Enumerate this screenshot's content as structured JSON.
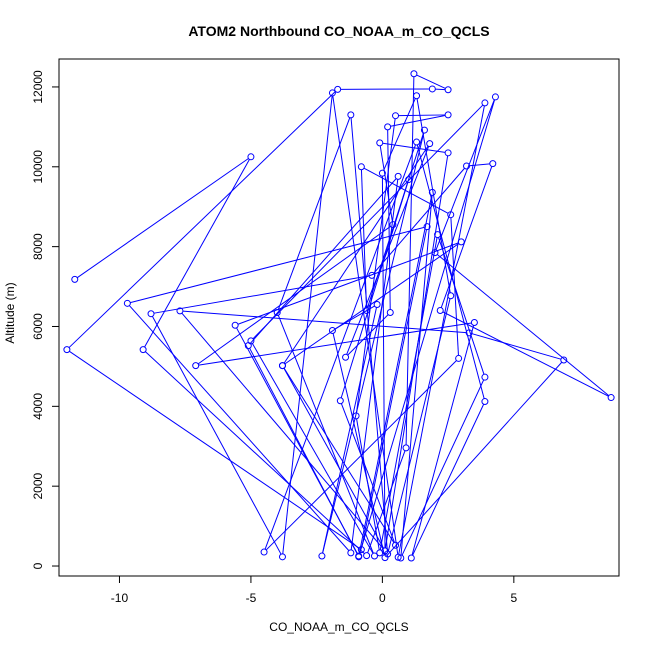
{
  "chart_data": {
    "type": "line",
    "title": "ATOM2 Northbound CO_NOAA_m_CO_QCLS",
    "xlabel": "CO_NOAA_m_CO_QCLS",
    "ylabel": "Altitude (m)",
    "xlim": [
      -12.3,
      9.0
    ],
    "ylim": [
      -250,
      12700
    ],
    "x_ticks": [
      -10,
      -5,
      0,
      5
    ],
    "y_ticks": [
      0,
      2000,
      4000,
      6000,
      8000,
      10000,
      12000
    ],
    "grid": false,
    "line_color": "#0000ff",
    "marker": "open-circle",
    "series": [
      {
        "points": [
          {
            "x": -11.7,
            "y": 7180
          },
          {
            "x": -5.0,
            "y": 10250
          },
          {
            "x": -9.1,
            "y": 5420
          },
          {
            "x": -0.6,
            "y": 260
          },
          {
            "x": 0.9,
            "y": 2960
          },
          {
            "x": 1.2,
            "y": 12330
          },
          {
            "x": 2.5,
            "y": 11930
          },
          {
            "x": 1.9,
            "y": 11950
          },
          {
            "x": -1.7,
            "y": 11940
          },
          {
            "x": -12.0,
            "y": 5420
          },
          {
            "x": -0.8,
            "y": 410
          },
          {
            "x": 1.7,
            "y": 8500
          },
          {
            "x": -9.7,
            "y": 6580
          },
          {
            "x": -1.2,
            "y": 330
          },
          {
            "x": 0.6,
            "y": 9760
          },
          {
            "x": -5.1,
            "y": 5520
          },
          {
            "x": -0.9,
            "y": 230
          },
          {
            "x": 4.3,
            "y": 11750
          },
          {
            "x": 2.0,
            "y": 7850
          },
          {
            "x": 8.7,
            "y": 4220
          },
          {
            "x": 2.2,
            "y": 6400
          },
          {
            "x": 4.2,
            "y": 10080
          },
          {
            "x": 3.2,
            "y": 10020
          },
          {
            "x": -0.4,
            "y": 7280
          },
          {
            "x": -8.8,
            "y": 6320
          },
          {
            "x": -3.8,
            "y": 230
          },
          {
            "x": -1.9,
            "y": 11850
          },
          {
            "x": 0.6,
            "y": 220
          },
          {
            "x": 3.9,
            "y": 11600
          },
          {
            "x": -5.0,
            "y": 5640
          },
          {
            "x": -0.3,
            "y": 250
          },
          {
            "x": -4.0,
            "y": 6350
          },
          {
            "x": -1.2,
            "y": 11300
          },
          {
            "x": 0.2,
            "y": 300
          },
          {
            "x": 2.6,
            "y": 6770
          },
          {
            "x": 1.3,
            "y": 11780
          },
          {
            "x": 0.0,
            "y": 9840
          },
          {
            "x": 0.1,
            "y": 380
          },
          {
            "x": -7.7,
            "y": 6390
          },
          {
            "x": 3.3,
            "y": 5840
          },
          {
            "x": 6.9,
            "y": 5160
          },
          {
            "x": 0.1,
            "y": 210
          },
          {
            "x": -1.9,
            "y": 5900
          },
          {
            "x": -0.2,
            "y": 6550
          },
          {
            "x": -2.3,
            "y": 250
          },
          {
            "x": 1.6,
            "y": 10920
          },
          {
            "x": -0.6,
            "y": 6400
          },
          {
            "x": -0.8,
            "y": 10000
          },
          {
            "x": 2.6,
            "y": 8800
          },
          {
            "x": 2.9,
            "y": 5200
          },
          {
            "x": -4.5,
            "y": 350
          },
          {
            "x": 1.3,
            "y": 10620
          },
          {
            "x": 3.9,
            "y": 4120
          },
          {
            "x": 1.1,
            "y": 200
          },
          {
            "x": 3.5,
            "y": 6100
          },
          {
            "x": -7.1,
            "y": 5020
          },
          {
            "x": 0.4,
            "y": 8550
          },
          {
            "x": -0.1,
            "y": 10600
          },
          {
            "x": 2.5,
            "y": 10350
          },
          {
            "x": 0.1,
            "y": 380
          },
          {
            "x": -3.8,
            "y": 5020
          },
          {
            "x": 1.8,
            "y": 10580
          },
          {
            "x": -1.4,
            "y": 5230
          },
          {
            "x": 0.3,
            "y": 6350
          },
          {
            "x": 0.2,
            "y": 11000
          },
          {
            "x": 2.5,
            "y": 11300
          },
          {
            "x": 0.5,
            "y": 11280
          },
          {
            "x": -1.0,
            "y": 3760
          },
          {
            "x": -0.1,
            "y": 330
          },
          {
            "x": 2.1,
            "y": 8300
          },
          {
            "x": 3.9,
            "y": 4730
          },
          {
            "x": 0.7,
            "y": 200
          },
          {
            "x": 1.9,
            "y": 9360
          },
          {
            "x": -0.9,
            "y": 250
          },
          {
            "x": -5.6,
            "y": 6030
          },
          {
            "x": 3.0,
            "y": 8120
          },
          {
            "x": -3.8,
            "y": 5020
          },
          {
            "x": 0.5,
            "y": 520
          },
          {
            "x": -1.6,
            "y": 4140
          },
          {
            "x": 1.0,
            "y": 9680
          }
        ]
      }
    ]
  }
}
